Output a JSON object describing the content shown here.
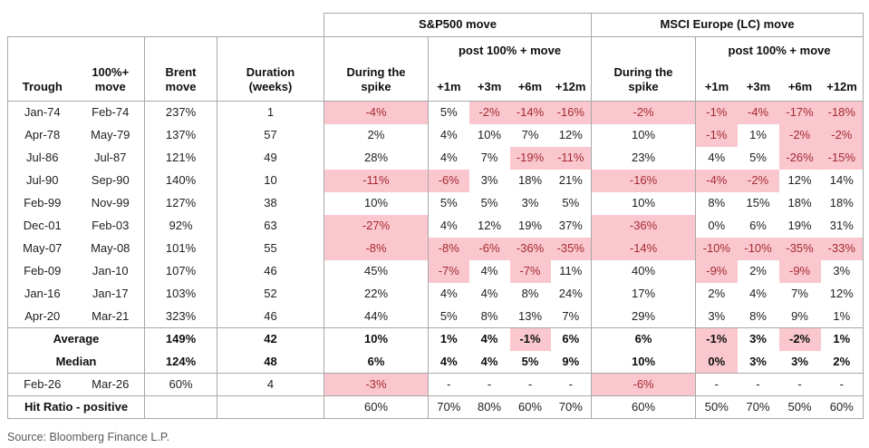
{
  "colors": {
    "highlight_bg": "#f9c7cd",
    "highlight_text": "#a62b35",
    "border": "#a8a8a8"
  },
  "source": "Source: Bloomberg Finance L.P.",
  "header": {
    "sp_group": "S&P500 move",
    "eu_group": "MSCI Europe (LC) move",
    "col_trough": "Trough",
    "col_move": "100%+\nmove",
    "col_brent": "Brent\nmove",
    "col_duration": "Duration\n(weeks)",
    "during_label": "During the\nspike",
    "post_label": "post 100% + move",
    "period_cols": [
      "+1m",
      "+3m",
      "+6m",
      "+12m"
    ]
  },
  "rows": [
    {
      "trough": "Jan-74",
      "move": "Feb-74",
      "brent": "237%",
      "duration": "1",
      "sp": [
        {
          "v": "-4%",
          "hl": true
        },
        {
          "v": "5%"
        },
        {
          "v": "-2%",
          "hl": true
        },
        {
          "v": "-14%",
          "hl": true
        },
        {
          "v": "-16%",
          "hl": true
        }
      ],
      "eu": [
        {
          "v": "-2%",
          "hl": true
        },
        {
          "v": "-1%",
          "hl": true
        },
        {
          "v": "-4%",
          "hl": true
        },
        {
          "v": "-17%",
          "hl": true
        },
        {
          "v": "-18%",
          "hl": true
        }
      ]
    },
    {
      "trough": "Apr-78",
      "move": "May-79",
      "brent": "137%",
      "duration": "57",
      "sp": [
        {
          "v": "2%"
        },
        {
          "v": "4%"
        },
        {
          "v": "10%"
        },
        {
          "v": "7%"
        },
        {
          "v": "12%"
        }
      ],
      "eu": [
        {
          "v": "10%"
        },
        {
          "v": "-1%",
          "hl": true
        },
        {
          "v": "1%"
        },
        {
          "v": "-2%",
          "hl": true
        },
        {
          "v": "-2%",
          "hl": true
        }
      ]
    },
    {
      "trough": "Jul-86",
      "move": "Jul-87",
      "brent": "121%",
      "duration": "49",
      "sp": [
        {
          "v": "28%"
        },
        {
          "v": "4%"
        },
        {
          "v": "7%"
        },
        {
          "v": "-19%",
          "hl": true
        },
        {
          "v": "-11%",
          "hl": true
        }
      ],
      "eu": [
        {
          "v": "23%"
        },
        {
          "v": "4%"
        },
        {
          "v": "5%"
        },
        {
          "v": "-26%",
          "hl": true
        },
        {
          "v": "-15%",
          "hl": true
        }
      ]
    },
    {
      "trough": "Jul-90",
      "move": "Sep-90",
      "brent": "140%",
      "duration": "10",
      "sp": [
        {
          "v": "-11%",
          "hl": true
        },
        {
          "v": "-6%",
          "hl": true
        },
        {
          "v": "3%"
        },
        {
          "v": "18%"
        },
        {
          "v": "21%"
        }
      ],
      "eu": [
        {
          "v": "-16%",
          "hl": true
        },
        {
          "v": "-4%",
          "hl": true
        },
        {
          "v": "-2%",
          "hl": true
        },
        {
          "v": "12%"
        },
        {
          "v": "14%"
        }
      ]
    },
    {
      "trough": "Feb-99",
      "move": "Nov-99",
      "brent": "127%",
      "duration": "38",
      "sp": [
        {
          "v": "10%"
        },
        {
          "v": "5%"
        },
        {
          "v": "5%"
        },
        {
          "v": "3%"
        },
        {
          "v": "5%"
        }
      ],
      "eu": [
        {
          "v": "10%"
        },
        {
          "v": "8%"
        },
        {
          "v": "15%"
        },
        {
          "v": "18%"
        },
        {
          "v": "18%"
        }
      ]
    },
    {
      "trough": "Dec-01",
      "move": "Feb-03",
      "brent": "92%",
      "duration": "63",
      "sp": [
        {
          "v": "-27%",
          "hl": true
        },
        {
          "v": "4%"
        },
        {
          "v": "12%"
        },
        {
          "v": "19%"
        },
        {
          "v": "37%"
        }
      ],
      "eu": [
        {
          "v": "-36%",
          "hl": true
        },
        {
          "v": "0%"
        },
        {
          "v": "6%"
        },
        {
          "v": "19%"
        },
        {
          "v": "31%"
        }
      ]
    },
    {
      "trough": "May-07",
      "move": "May-08",
      "brent": "101%",
      "duration": "55",
      "sp": [
        {
          "v": "-8%",
          "hl": true
        },
        {
          "v": "-8%",
          "hl": true
        },
        {
          "v": "-6%",
          "hl": true
        },
        {
          "v": "-36%",
          "hl": true
        },
        {
          "v": "-35%",
          "hl": true
        }
      ],
      "eu": [
        {
          "v": "-14%",
          "hl": true
        },
        {
          "v": "-10%",
          "hl": true
        },
        {
          "v": "-10%",
          "hl": true
        },
        {
          "v": "-35%",
          "hl": true
        },
        {
          "v": "-33%",
          "hl": true
        }
      ]
    },
    {
      "trough": "Feb-09",
      "move": "Jan-10",
      "brent": "107%",
      "duration": "46",
      "sp": [
        {
          "v": "45%"
        },
        {
          "v": "-7%",
          "hl": true
        },
        {
          "v": "4%"
        },
        {
          "v": "-7%",
          "hl": true
        },
        {
          "v": "11%"
        }
      ],
      "eu": [
        {
          "v": "40%"
        },
        {
          "v": "-9%",
          "hl": true
        },
        {
          "v": "2%"
        },
        {
          "v": "-9%",
          "hl": true
        },
        {
          "v": "3%"
        }
      ]
    },
    {
      "trough": "Jan-16",
      "move": "Jan-17",
      "brent": "103%",
      "duration": "52",
      "sp": [
        {
          "v": "22%"
        },
        {
          "v": "4%"
        },
        {
          "v": "4%"
        },
        {
          "v": "8%"
        },
        {
          "v": "24%"
        }
      ],
      "eu": [
        {
          "v": "17%"
        },
        {
          "v": "2%"
        },
        {
          "v": "4%"
        },
        {
          "v": "7%"
        },
        {
          "v": "12%"
        }
      ]
    },
    {
      "trough": "Apr-20",
      "move": "Mar-21",
      "brent": "323%",
      "duration": "46",
      "sp": [
        {
          "v": "44%"
        },
        {
          "v": "5%"
        },
        {
          "v": "8%"
        },
        {
          "v": "13%"
        },
        {
          "v": "7%"
        }
      ],
      "eu": [
        {
          "v": "29%"
        },
        {
          "v": "3%"
        },
        {
          "v": "8%"
        },
        {
          "v": "9%"
        },
        {
          "v": "1%"
        }
      ]
    }
  ],
  "summary": [
    {
      "label": "Average",
      "brent": "149%",
      "duration": "42",
      "sp": [
        {
          "v": "10%"
        },
        {
          "v": "1%"
        },
        {
          "v": "4%"
        },
        {
          "v": "-1%",
          "hl": true
        },
        {
          "v": "6%"
        }
      ],
      "eu": [
        {
          "v": "6%"
        },
        {
          "v": "-1%",
          "hl": true
        },
        {
          "v": "3%"
        },
        {
          "v": "-2%",
          "hl": true
        },
        {
          "v": "1%"
        }
      ]
    },
    {
      "label": "Median",
      "brent": "124%",
      "duration": "48",
      "sp": [
        {
          "v": "6%"
        },
        {
          "v": "4%"
        },
        {
          "v": "4%"
        },
        {
          "v": "5%"
        },
        {
          "v": "9%"
        }
      ],
      "eu": [
        {
          "v": "10%"
        },
        {
          "v": "0%",
          "hl": true
        },
        {
          "v": "3%"
        },
        {
          "v": "3%"
        },
        {
          "v": "2%"
        }
      ]
    }
  ],
  "current": {
    "trough": "Feb-26",
    "move": "Mar-26",
    "brent": "60%",
    "duration": "4",
    "sp": [
      {
        "v": "-3%",
        "hl": true
      },
      {
        "v": "-"
      },
      {
        "v": "-"
      },
      {
        "v": "-"
      },
      {
        "v": "-"
      }
    ],
    "eu": [
      {
        "v": "-6%",
        "hl": true
      },
      {
        "v": "-"
      },
      {
        "v": "-"
      },
      {
        "v": "-"
      },
      {
        "v": "-"
      }
    ]
  },
  "hit_ratio": {
    "label": "Hit Ratio - positive",
    "sp": [
      {
        "v": "60%"
      },
      {
        "v": "70%"
      },
      {
        "v": "80%"
      },
      {
        "v": "60%"
      },
      {
        "v": "70%"
      }
    ],
    "eu": [
      {
        "v": "60%"
      },
      {
        "v": "50%"
      },
      {
        "v": "70%"
      },
      {
        "v": "50%"
      },
      {
        "v": "60%"
      }
    ]
  }
}
